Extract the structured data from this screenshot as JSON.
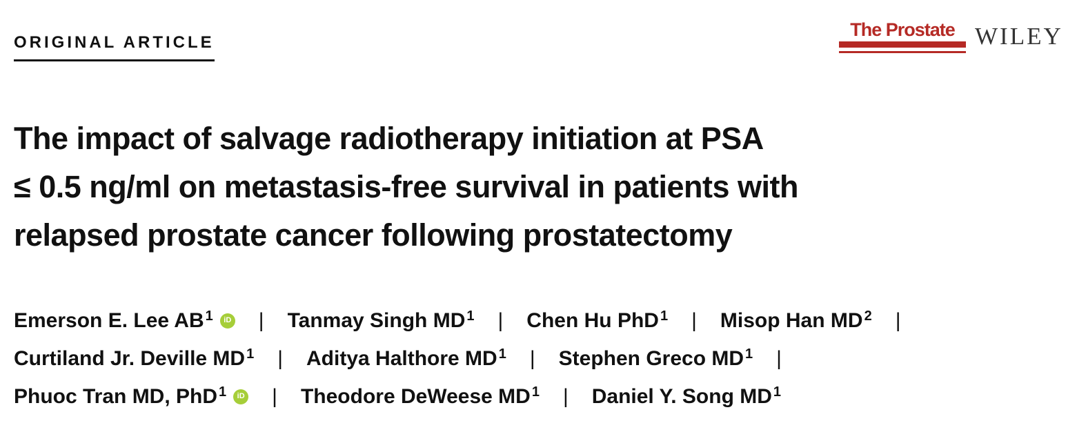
{
  "header": {
    "article_type": "ORIGINAL ARTICLE",
    "journal_logo": "The Prostate",
    "publisher_logo": "WILEY"
  },
  "title_lines": [
    "The impact of salvage radiotherapy initiation at PSA",
    "≤ 0.5 ng/ml on metastasis-free survival in patients with",
    "relapsed prostate cancer following prostatectomy"
  ],
  "separator": "|",
  "authors": [
    {
      "name": "Emerson E. Lee AB",
      "affil": "1",
      "orcid": true
    },
    {
      "name": "Tanmay Singh MD",
      "affil": "1"
    },
    {
      "name": "Chen Hu PhD",
      "affil": "1"
    },
    {
      "name": "Misop Han MD",
      "affil": "2"
    },
    {
      "name": "Curtiland Jr. Deville MD",
      "affil": "1"
    },
    {
      "name": "Aditya Halthore MD",
      "affil": "1"
    },
    {
      "name": "Stephen Greco MD",
      "affil": "1"
    },
    {
      "name": "Phuoc Tran MD, PhD",
      "affil": "1",
      "orcid": true
    },
    {
      "name": "Theodore DeWeese MD",
      "affil": "1"
    },
    {
      "name": "Daniel Y. Song MD",
      "affil": "1"
    }
  ],
  "orcid_icon_label": "iD",
  "colors": {
    "journal_red": "#b52a25",
    "orcid_green": "#a6ce39"
  }
}
